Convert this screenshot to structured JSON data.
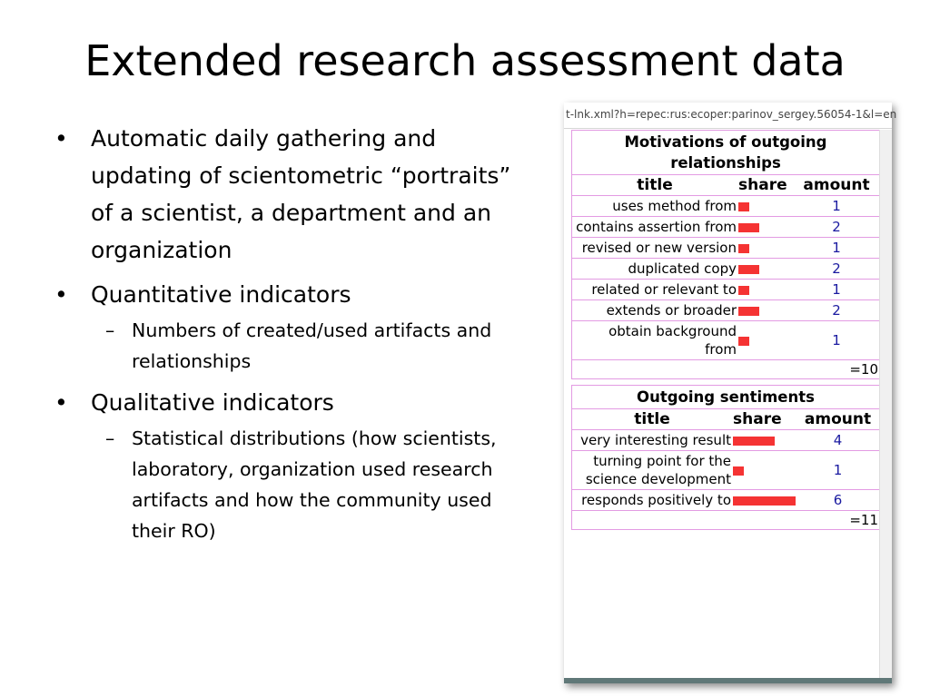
{
  "slide": {
    "title": "Extended research assessment data",
    "bullets": [
      {
        "text": "Automatic daily gathering and updating of scientometric “portraits” of a scientist, a department and an organization"
      },
      {
        "text": "Quantitative indicators",
        "sub": "Numbers of created/used artifacts and relationships"
      },
      {
        "text": "Qualitative indicators",
        "sub": "Statistical distributions (how scientists, laboratory, organization used  research artifacts and how the community used their RO)"
      }
    ]
  },
  "browser": {
    "url": "t-lnk.xml?h=repec:rus:ecoper:parinov_sergey.56054-1&l=en"
  },
  "tables": [
    {
      "caption": "Motivations of outgoing relationships",
      "headers": {
        "title": "title",
        "share": "share",
        "amount": "amount"
      },
      "rows": [
        {
          "title": "uses method from",
          "share": 1,
          "amount": "1"
        },
        {
          "title": "contains assertion from",
          "share": 2,
          "amount": "2"
        },
        {
          "title": "revised or new version",
          "share": 1,
          "amount": "1"
        },
        {
          "title": "duplicated copy",
          "share": 2,
          "amount": "2"
        },
        {
          "title": "related or relevant to",
          "share": 1,
          "amount": "1"
        },
        {
          "title": "extends or broader",
          "share": 2,
          "amount": "2"
        },
        {
          "title": "obtain background from",
          "share": 1,
          "amount": "1"
        }
      ],
      "total": "=10"
    },
    {
      "caption": "Outgoing sentiments",
      "headers": {
        "title": "title",
        "share": "share",
        "amount": "amount"
      },
      "rows": [
        {
          "title": "very interesting result",
          "share": 4,
          "amount": "4"
        },
        {
          "title": "turning point for the science development",
          "share": 1,
          "amount": "1"
        },
        {
          "title": "responds positively to",
          "share": 6,
          "amount": "6"
        }
      ],
      "total": "=11"
    }
  ],
  "colors": {
    "bar": "#f53333",
    "border": "#e39be3",
    "amount": "#1a1aa0"
  }
}
